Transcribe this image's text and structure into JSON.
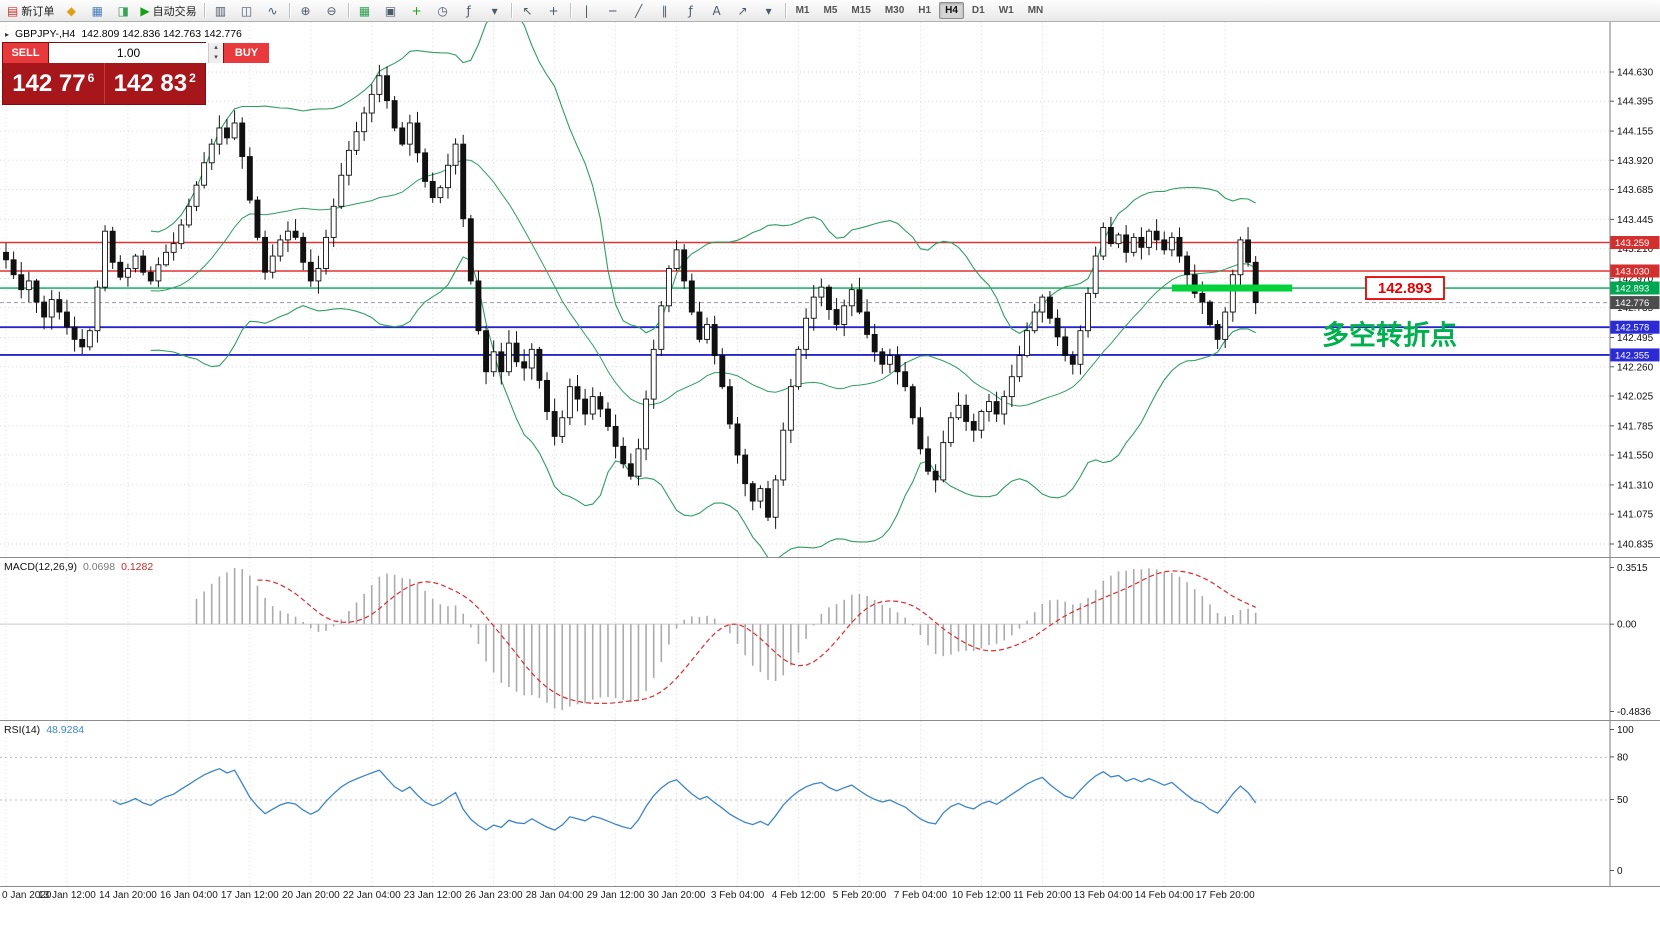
{
  "toolbar": {
    "groups": [
      {
        "items": [
          {
            "name": "new-order-button",
            "icon": "new-order-icon",
            "glyph": "▤",
            "color": "#cc3333",
            "label": "新订单"
          },
          {
            "name": "metaeditor-button",
            "icon": "metaeditor-icon",
            "glyph": "◆",
            "color": "#dba019"
          },
          {
            "name": "data-window-button",
            "icon": "data-window-icon",
            "glyph": "▦",
            "color": "#4a7ebb"
          },
          {
            "name": "strategy-tester-button",
            "icon": "strategy-tester-icon",
            "glyph": "◨",
            "color": "#3aa05a"
          },
          {
            "name": "autotrading-button",
            "icon": "autotrading-play-icon",
            "glyph": "▶",
            "color": "#18a018",
            "label": "自动交易"
          }
        ]
      },
      {
        "items": [
          {
            "name": "bar-chart-button",
            "icon": "bar-chart-icon",
            "glyph": "▥"
          },
          {
            "name": "candlestick-chart-button",
            "icon": "candlestick-chart-icon",
            "glyph": "◫"
          },
          {
            "name": "line-chart-button",
            "icon": "line-chart-icon",
            "glyph": "∿"
          }
        ]
      },
      {
        "items": [
          {
            "name": "zoom-in-button",
            "icon": "zoom-in-icon",
            "glyph": "⊕"
          },
          {
            "name": "zoom-out-button",
            "icon": "zoom-out-icon",
            "glyph": "⊖"
          }
        ]
      },
      {
        "items": [
          {
            "name": "tile-windows-button",
            "icon": "tile-windows-icon",
            "glyph": "▦",
            "color": "#2e9e50"
          },
          {
            "name": "auto-arrange-button",
            "icon": "auto-arrange-icon",
            "glyph": "▣"
          },
          {
            "name": "add-chart-button",
            "icon": "add-chart-icon",
            "glyph": "+",
            "color": "#1fa01f"
          },
          {
            "name": "periods-button",
            "icon": "clock-icon",
            "glyph": "◷"
          },
          {
            "name": "indicators-button",
            "icon": "indicators-icon",
            "glyph": "ƒ"
          },
          {
            "name": "indicators-dropdown",
            "icon": "chevron-down-icon",
            "glyph": "▾"
          }
        ]
      },
      {
        "items": [
          {
            "name": "cursor-button",
            "icon": "cursor-icon",
            "glyph": "↖"
          },
          {
            "name": "crosshair-button",
            "icon": "crosshair-icon",
            "glyph": "+"
          }
        ]
      },
      {
        "items": [
          {
            "name": "vertical-line-button",
            "icon": "vertical-line-icon",
            "glyph": "|"
          },
          {
            "name": "horizontal-line-button",
            "icon": "horizontal-line-icon",
            "glyph": "─"
          },
          {
            "name": "trendline-button",
            "icon": "trendline-icon",
            "glyph": "╱"
          },
          {
            "name": "equidistant-channel-button",
            "icon": "channel-icon",
            "glyph": "∥"
          },
          {
            "name": "fibonacci-button",
            "icon": "fibonacci-icon",
            "glyph": "ƒ"
          },
          {
            "name": "text-button",
            "icon": "text-icon",
            "glyph": "A"
          },
          {
            "name": "arrows-button",
            "icon": "arrow-icon",
            "glyph": "↗"
          },
          {
            "name": "shapes-dropdown",
            "icon": "chevron-down-icon",
            "glyph": "▾"
          }
        ]
      }
    ],
    "timeframes": [
      {
        "label": "M1"
      },
      {
        "label": "M5"
      },
      {
        "label": "M15"
      },
      {
        "label": "M30"
      },
      {
        "label": "H1"
      },
      {
        "label": "H4",
        "active": true
      },
      {
        "label": "D1"
      },
      {
        "label": "W1"
      },
      {
        "label": "MN"
      }
    ]
  },
  "symbol_header": {
    "marker": "▸",
    "symbol": "GBPJPY-,H4",
    "ohlc": "142.809 142.836 142.763 142.776"
  },
  "trade_panel": {
    "sell_label": "SELL",
    "buy_label": "BUY",
    "volume": "1.00",
    "sell_price": "142 77",
    "sell_sup": "6",
    "buy_price": "142 83",
    "buy_sup": "2",
    "spin_up": "▴",
    "spin_down": "▾"
  },
  "chart_data": {
    "type": "candlestick",
    "symbol": "GBPJPY-",
    "timeframe": "H4",
    "closes": [
      143.12,
      143.0,
      142.88,
      142.95,
      142.78,
      142.66,
      142.8,
      142.7,
      142.58,
      142.48,
      142.42,
      142.55,
      142.9,
      143.35,
      143.1,
      142.98,
      143.05,
      143.15,
      143.02,
      142.95,
      143.08,
      143.18,
      143.25,
      143.4,
      143.55,
      143.72,
      143.9,
      144.05,
      144.18,
      144.1,
      144.22,
      143.95,
      143.6,
      143.3,
      143.02,
      143.15,
      143.28,
      143.35,
      143.3,
      143.1,
      142.95,
      143.05,
      143.3,
      143.55,
      143.8,
      144.0,
      144.15,
      144.3,
      144.45,
      144.6,
      144.4,
      144.18,
      144.05,
      144.22,
      143.98,
      143.75,
      143.62,
      143.7,
      143.88,
      144.05,
      143.45,
      142.95,
      142.55,
      142.22,
      142.38,
      142.22,
      142.45,
      142.3,
      142.25,
      142.4,
      142.15,
      141.9,
      141.7,
      141.85,
      142.1,
      142.0,
      141.88,
      142.02,
      141.92,
      141.78,
      141.62,
      141.48,
      141.38,
      141.6,
      142.0,
      142.4,
      142.75,
      143.05,
      143.2,
      142.95,
      142.7,
      142.48,
      142.6,
      142.35,
      142.1,
      141.8,
      141.55,
      141.32,
      141.18,
      141.28,
      141.05,
      141.35,
      141.75,
      142.1,
      142.4,
      142.65,
      142.82,
      142.9,
      142.72,
      142.6,
      142.75,
      142.88,
      142.7,
      142.52,
      142.38,
      142.28,
      142.35,
      142.22,
      142.1,
      141.85,
      141.6,
      141.42,
      141.35,
      141.65,
      141.85,
      141.95,
      141.82,
      141.75,
      141.9,
      141.98,
      141.88,
      142.02,
      142.18,
      142.35,
      142.55,
      142.7,
      142.82,
      142.65,
      142.5,
      142.35,
      142.28,
      142.55,
      142.85,
      143.15,
      143.38,
      143.25,
      143.32,
      143.18,
      143.3,
      143.22,
      143.35,
      143.28,
      143.2,
      143.3,
      143.15,
      143.0,
      142.85,
      142.78,
      142.6,
      142.48,
      142.7,
      143.0,
      143.28,
      143.1,
      142.776
    ],
    "bollinger": {
      "period": 20,
      "deviation": 2
    },
    "levels": [
      {
        "price": 143.259,
        "label": "143.259",
        "color": "#e03333",
        "label_bg": "#d32f2f",
        "width": 1.4
      },
      {
        "price": 143.03,
        "label": "143.030",
        "color": "#e03333",
        "label_bg": "#d32f2f",
        "width": 1.4
      },
      {
        "price": 142.893,
        "label": "142.893",
        "color": "#00a651",
        "label_bg": "#00a651",
        "width": 1.4,
        "highlight_segment": true
      },
      {
        "price": 142.578,
        "label": "142.578",
        "color": "#2626cc",
        "label_bg": "#2b2bd5",
        "width": 1.8
      },
      {
        "price": 142.355,
        "label": "142.355",
        "color": "#2626cc",
        "label_bg": "#2b2bd5",
        "width": 1.8
      }
    ],
    "current_price": {
      "value": 142.776,
      "label": "142.776",
      "label_bg": "#4d4d4d"
    },
    "price_axis_ticks": [
      "144.630",
      "144.395",
      "144.155",
      "143.920",
      "143.685",
      "143.445",
      "143.210",
      "142.970",
      "142.735",
      "142.495",
      "142.260",
      "142.025",
      "141.785",
      "141.550",
      "141.310",
      "141.075",
      "140.835"
    ],
    "time_axis_ticks": [
      "0 Jan 2020",
      "13 Jan 12:00",
      "14 Jan 20:00",
      "16 Jan 04:00",
      "17 Jan 12:00",
      "20 Jan 20:00",
      "22 Jan 04:00",
      "23 Jan 12:00",
      "26 Jan 23:00",
      "28 Jan 04:00",
      "29 Jan 12:00",
      "30 Jan 20:00",
      "3 Feb 04:00",
      "4 Feb 12:00",
      "5 Feb 20:00",
      "7 Feb 04:00",
      "10 Feb 12:00",
      "11 Feb 20:00",
      "13 Feb 04:00",
      "14 Feb 04:00",
      "17 Feb 20:00"
    ],
    "macd": {
      "name": "MACD(12,26,9)",
      "value_main": "0.0698",
      "value_signal": "0.1282",
      "scale": [
        "0.3515",
        "0.00",
        "-0.4836"
      ]
    },
    "rsi": {
      "name": "RSI(14)",
      "value": "48.9284",
      "scale": [
        "100",
        "80",
        "50",
        "0"
      ],
      "period": 14
    },
    "annotations": {
      "price_callout": {
        "text": "142.893",
        "color": "#e60000"
      },
      "note": {
        "text": "多空转折点",
        "color": "#00b050"
      }
    },
    "colors": {
      "up_candle": "#ffffff",
      "down_candle": "#111111",
      "candle_outline": "#111111",
      "bollinger": "#2f9e5f",
      "macd_histogram": "#ababab",
      "macd_signal": "#dd2c2c",
      "rsi_line": "#3d85c8",
      "highlight_green": "#00d23c",
      "grid": "#dcdcdc"
    }
  }
}
